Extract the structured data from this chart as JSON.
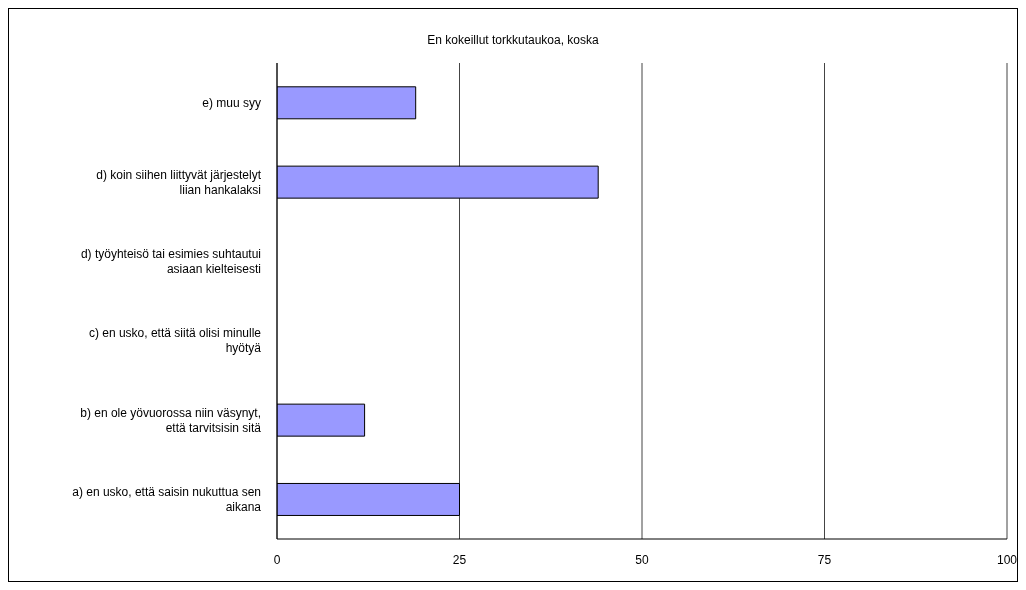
{
  "chart_data": {
    "type": "bar",
    "orientation": "horizontal",
    "title": "En kokeillut torkkutaukoa, koska",
    "categories": [
      "e) muu syy",
      "d) koin siihen liittyvät järjestelyt liian hankalaksi",
      "d) työyhteisö tai esimies suhtautui asiaan kielteisesti",
      "c) en usko, että siitä olisi minulle hyötyä",
      "b) en ole yövuorossa niin väsynyt, että tarvitsisin sitä",
      "a) en usko, että saisin nukuttua sen aikana"
    ],
    "values": [
      19,
      44,
      0,
      0,
      12,
      25
    ],
    "color": "#9999ff",
    "xlim": [
      0,
      100
    ],
    "xticks": [
      0,
      25,
      50,
      75,
      100
    ],
    "grid": "x"
  }
}
